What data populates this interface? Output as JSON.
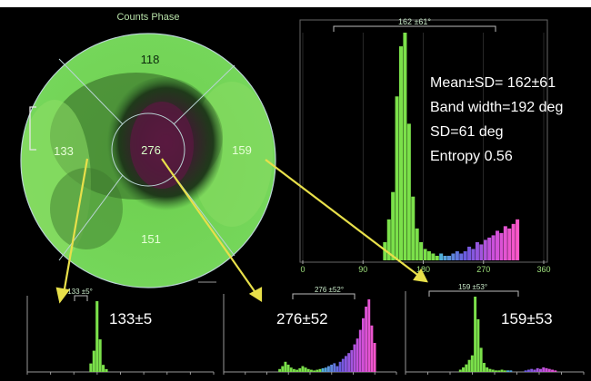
{
  "header": {
    "cut_text": ""
  },
  "polar_map": {
    "title": "Counts Phase",
    "sectors": {
      "anterior": "118",
      "septal": "133",
      "lateral": "159",
      "inferior": "151",
      "center": "276"
    },
    "colors": {
      "ring": "#b9d4d4",
      "green": "#7bd65a",
      "dark": "#5a1a40",
      "label": "#c9ffc2"
    }
  },
  "stats": {
    "lines": [
      "Mean±SD= 162±61",
      "Band width=192 deg",
      "SD=61 deg",
      "Entropy 0.56"
    ]
  },
  "chart_data": [
    {
      "name_key": "main",
      "type": "bar",
      "title": "162 ±61°",
      "xlim": [
        0,
        360
      ],
      "xticks": [
        "0",
        "90",
        "180",
        "270",
        "360"
      ],
      "ylim": [
        0,
        100
      ],
      "bin_width": 6,
      "x": [
        120,
        126,
        132,
        138,
        144,
        150,
        156,
        162,
        168,
        174,
        180,
        186,
        192,
        198,
        204,
        210,
        216,
        222,
        228,
        234,
        240,
        246,
        252,
        258,
        264,
        270,
        276,
        282,
        288,
        294,
        300,
        306,
        312,
        318
      ],
      "values": [
        8,
        18,
        30,
        72,
        94,
        100,
        60,
        28,
        14,
        8,
        5,
        4,
        3,
        2,
        3,
        2,
        2,
        3,
        4,
        3,
        4,
        6,
        5,
        8,
        7,
        9,
        10,
        11,
        13,
        12,
        15,
        14,
        16,
        18
      ]
    },
    {
      "name_key": "small1",
      "type": "bar",
      "title": "133 ±5°",
      "label": "133±5",
      "xlim": [
        0,
        360
      ],
      "ylim": [
        0,
        100
      ],
      "bin_width": 6,
      "x": [
        120,
        126,
        132,
        138,
        144,
        150
      ],
      "values": [
        12,
        30,
        100,
        46,
        10,
        4
      ]
    },
    {
      "name_key": "small2",
      "type": "bar",
      "title": "276 ±52°",
      "label": "276±52",
      "xlim": [
        0,
        360
      ],
      "ylim": [
        0,
        100
      ],
      "bin_width": 6,
      "x": [
        114,
        120,
        126,
        132,
        138,
        144,
        150,
        156,
        162,
        168,
        174,
        180,
        186,
        192,
        198,
        204,
        210,
        216,
        222,
        228,
        234,
        240,
        246,
        252,
        258,
        264,
        270,
        276,
        282,
        288,
        294,
        300,
        306,
        312
      ],
      "values": [
        4,
        8,
        14,
        10,
        6,
        4,
        3,
        5,
        8,
        6,
        4,
        3,
        2,
        3,
        4,
        5,
        6,
        8,
        10,
        12,
        8,
        14,
        18,
        22,
        26,
        30,
        38,
        46,
        58,
        74,
        90,
        100,
        64,
        40
      ]
    },
    {
      "name_key": "small3",
      "type": "bar",
      "title": "159 ±53°",
      "label": "159±53",
      "xlim": [
        0,
        360
      ],
      "ylim": [
        0,
        100
      ],
      "bin_width": 6,
      "x": [
        108,
        114,
        120,
        126,
        132,
        138,
        144,
        150,
        156,
        162,
        168,
        174,
        180,
        186,
        192,
        198,
        204,
        210,
        240,
        246,
        252,
        258,
        264,
        270,
        276,
        282,
        288,
        294,
        300
      ],
      "values": [
        3,
        6,
        10,
        16,
        22,
        100,
        70,
        32,
        12,
        6,
        4,
        3,
        2,
        2,
        3,
        2,
        2,
        2,
        2,
        3,
        4,
        3,
        5,
        4,
        6,
        5,
        4,
        3,
        2
      ]
    }
  ]
}
